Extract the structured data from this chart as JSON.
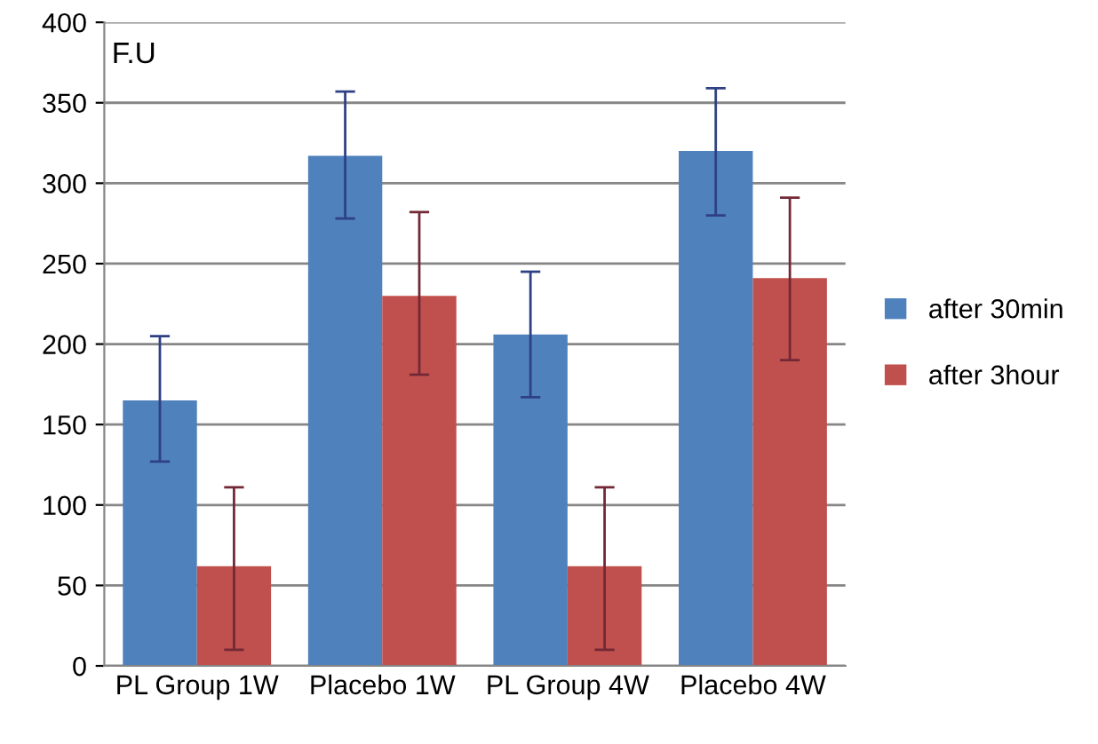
{
  "chart_data": {
    "type": "bar",
    "ylabel": "F.U",
    "categories": [
      "PL Group 1W",
      "Placebo 1W",
      "PL Group 4W",
      "Placebo 4W"
    ],
    "series": [
      {
        "name": "after 30min",
        "color": "#4f81bd",
        "values": [
          165,
          317,
          206,
          320
        ],
        "errors": [
          [
            127,
            205
          ],
          [
            278,
            357
          ],
          [
            167,
            245
          ],
          [
            280,
            359
          ]
        ]
      },
      {
        "name": "after 3hour",
        "color": "#c0504d",
        "values": [
          62,
          230,
          62,
          241
        ],
        "errors": [
          [
            10,
            111
          ],
          [
            181,
            282
          ],
          [
            10,
            111
          ],
          [
            190,
            291
          ]
        ]
      }
    ],
    "ylim": [
      0,
      400
    ],
    "yticks": [
      0,
      50,
      100,
      150,
      200,
      250,
      300,
      350,
      400
    ],
    "grid": "y",
    "legend": "right"
  }
}
